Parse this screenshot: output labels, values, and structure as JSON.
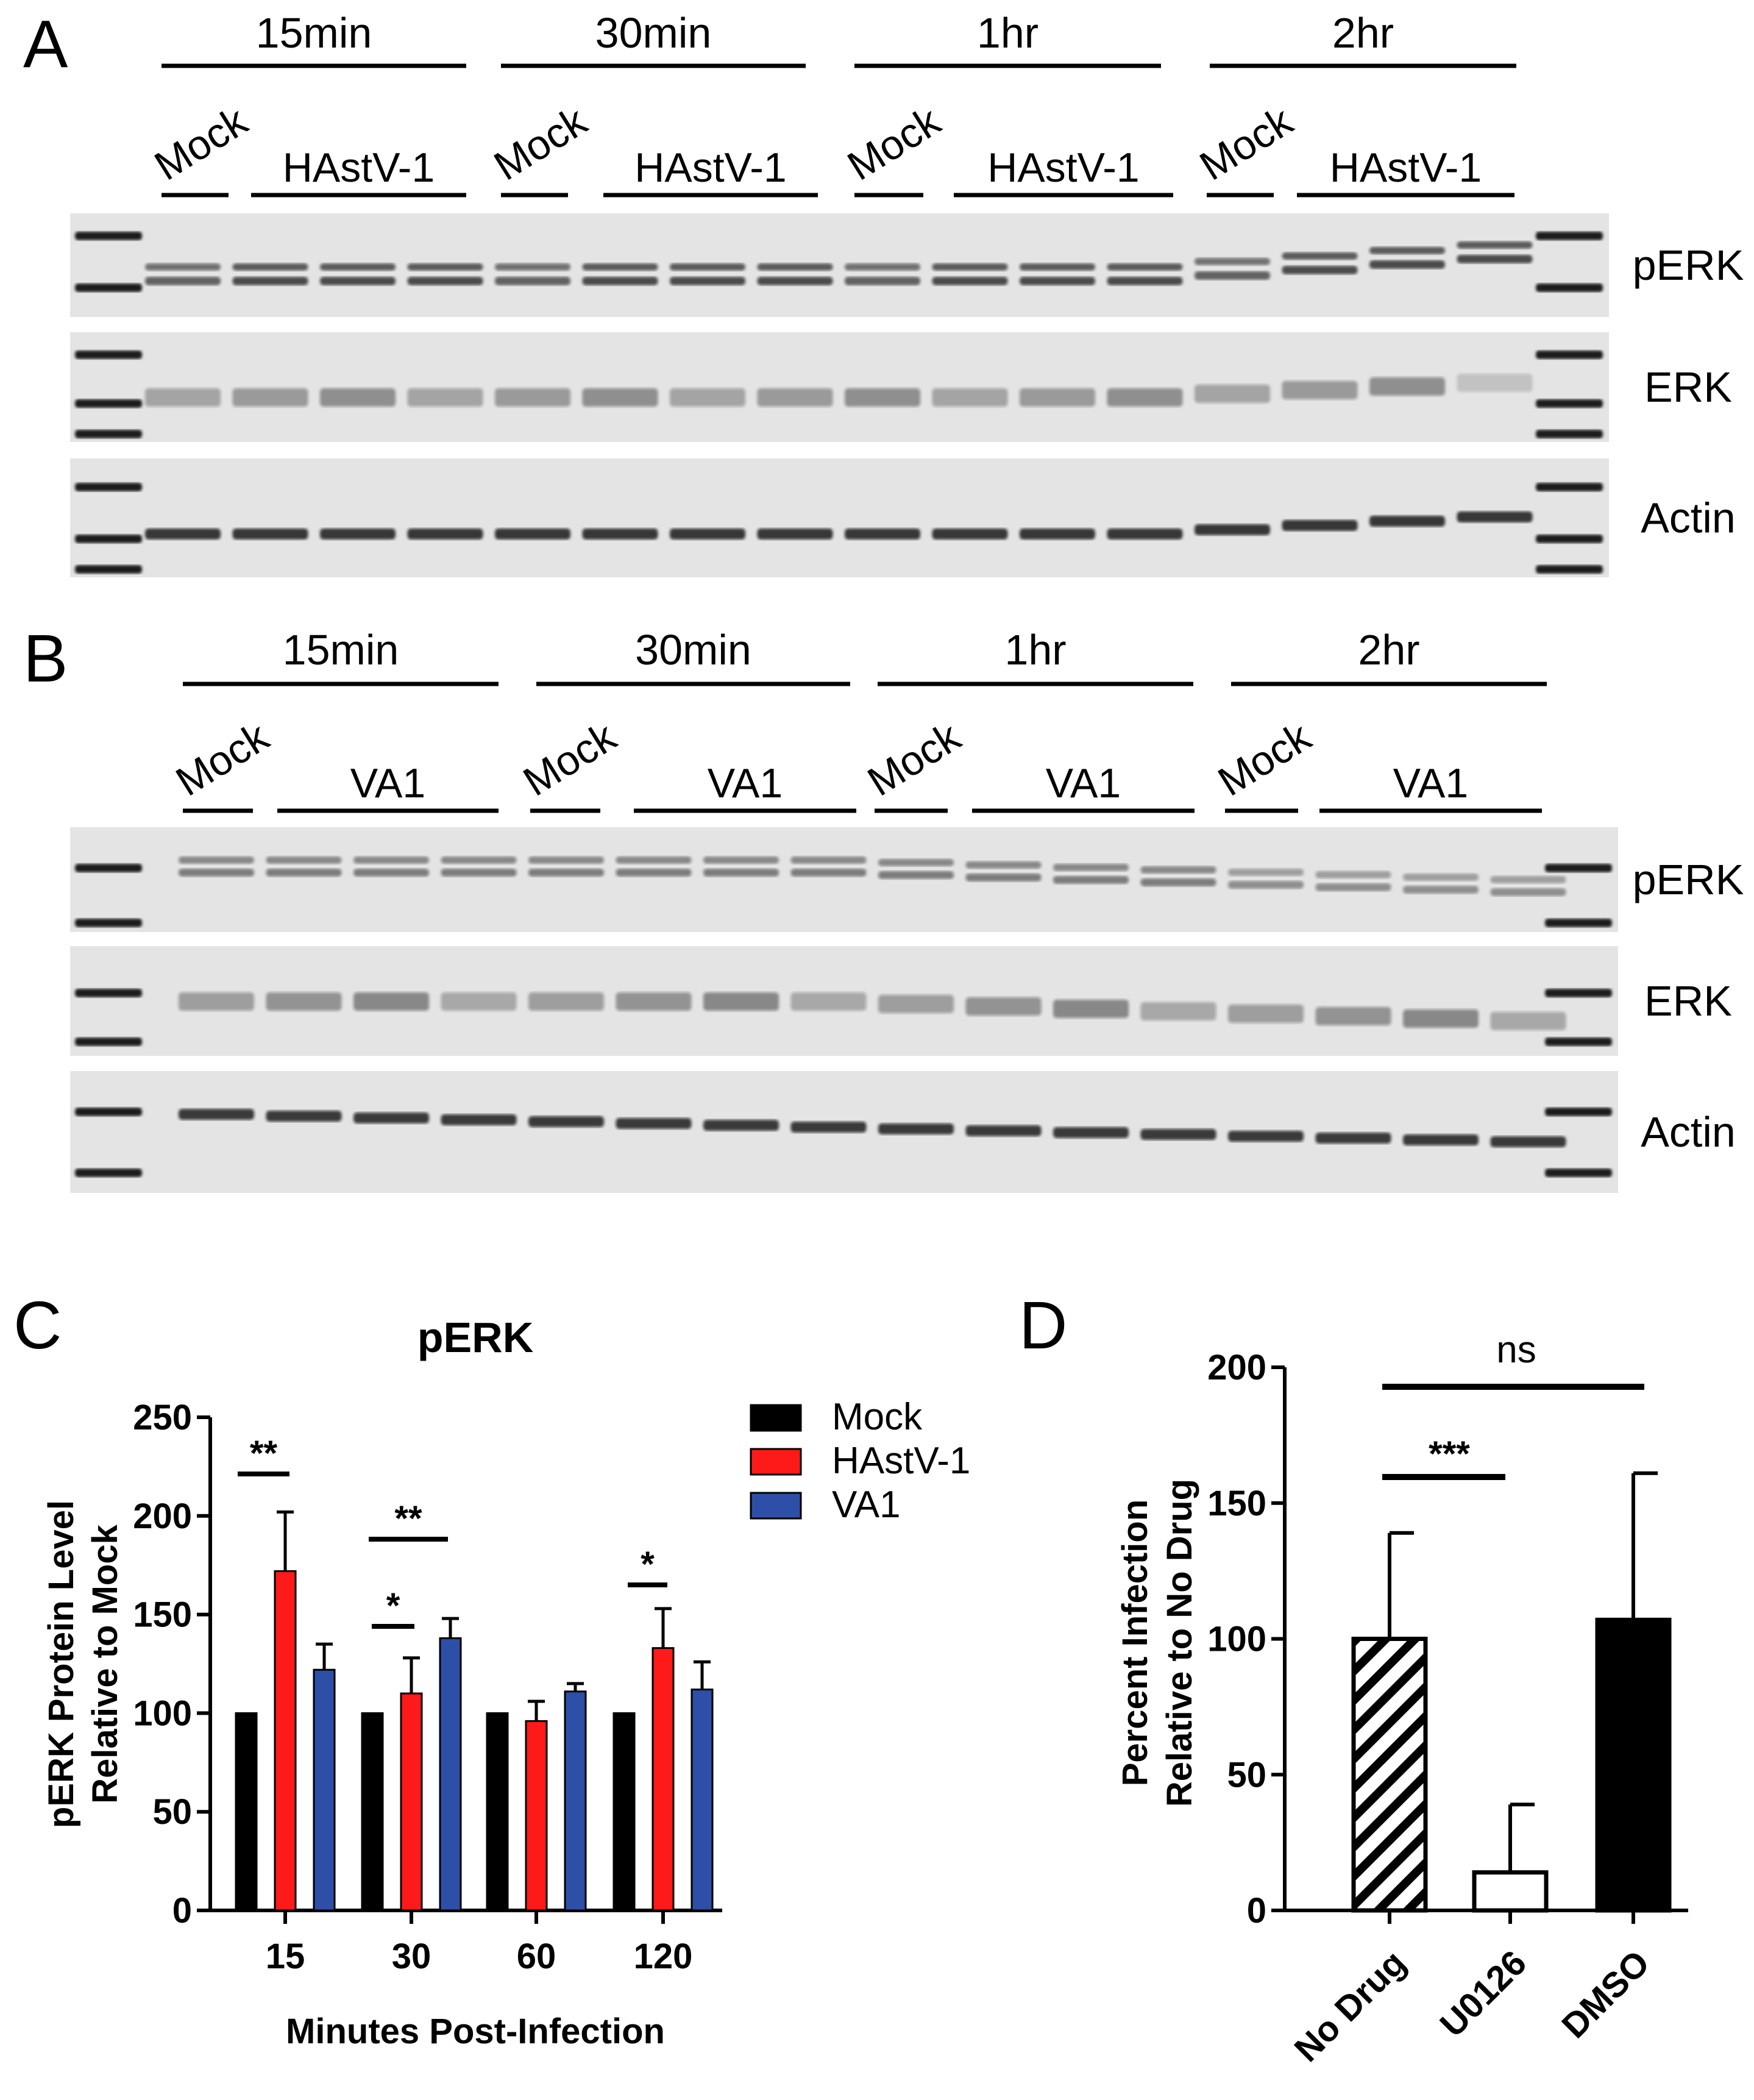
{
  "panels": {
    "a": "A",
    "b": "B",
    "c": "C",
    "d": "D"
  },
  "blot_a": {
    "timepoints": [
      "15min",
      "30min",
      "1hr",
      "2hr"
    ],
    "mock_label": "Mock",
    "virus_label": "HAstV-1",
    "rows": [
      "pERK",
      "ERK",
      "Actin"
    ]
  },
  "blot_b": {
    "timepoints": [
      "15min",
      "30min",
      "1hr",
      "2hr"
    ],
    "mock_label": "Mock",
    "virus_label": "VA1",
    "rows": [
      "pERK",
      "ERK",
      "Actin"
    ]
  },
  "chart_data": [
    {
      "type": "bar",
      "panel": "C",
      "title": "pERK",
      "xlabel": "Minutes Post-Infection",
      "ylabel": [
        "pERK Protein Level",
        "Relative to Mock"
      ],
      "categories": [
        "15",
        "30",
        "60",
        "120"
      ],
      "ylim": [
        0,
        250
      ],
      "yticks": [
        "0",
        "50",
        "100",
        "150",
        "200",
        "250"
      ],
      "series": [
        {
          "name": "Mock",
          "color": "#000000",
          "values": [
            100,
            100,
            100,
            100
          ],
          "errors": [
            0,
            0,
            0,
            0
          ]
        },
        {
          "name": "HAstV-1",
          "color": "#ff1a1a",
          "values": [
            172,
            110,
            96,
            133
          ],
          "errors": [
            30,
            18,
            10,
            20
          ]
        },
        {
          "name": "VA1",
          "color": "#2e4fa8",
          "values": [
            122,
            138,
            111,
            112
          ],
          "errors": [
            13,
            10,
            4,
            14
          ]
        }
      ],
      "legend_position": "right",
      "significance": [
        "**",
        "*",
        "**",
        "*"
      ]
    },
    {
      "type": "bar",
      "panel": "D",
      "ylabel": [
        "Percent Infection",
        "Relative to No Drug"
      ],
      "categories": [
        "No Drug",
        "U0126",
        "DMSO"
      ],
      "values": [
        100,
        14,
        107
      ],
      "errors": [
        39,
        25,
        54
      ],
      "ylim": [
        0,
        200
      ],
      "yticks": [
        "0",
        "50",
        "100",
        "150",
        "200"
      ],
      "fills": [
        "hatched",
        "white",
        "black"
      ],
      "significance": [
        "***",
        "ns"
      ]
    }
  ]
}
